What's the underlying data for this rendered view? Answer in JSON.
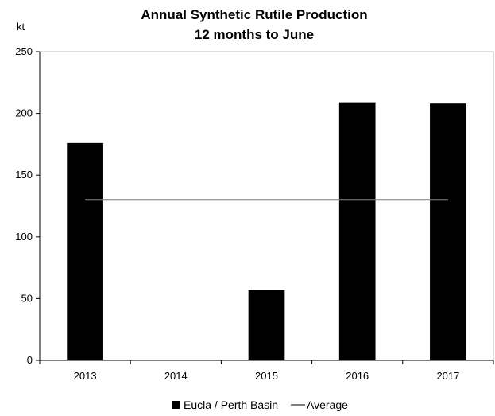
{
  "chart_data": {
    "type": "bar",
    "title": "Annual Synthetic Rutile Production",
    "subtitle": "12 months to June",
    "ylabel": "kt",
    "xlabel": "",
    "categories": [
      "2013",
      "2014",
      "2015",
      "2016",
      "2017"
    ],
    "series": [
      {
        "name": "Eucla / Perth Basin",
        "type": "bar",
        "color": "#000000",
        "values": [
          176,
          0,
          57,
          209,
          208
        ]
      },
      {
        "name": "Average",
        "type": "line",
        "color": "#7f7f7f",
        "values": [
          130,
          130,
          130,
          130,
          130
        ]
      }
    ],
    "ylim": [
      0,
      250
    ],
    "yticks": [
      0,
      50,
      100,
      150,
      200,
      250
    ],
    "grid": false,
    "legend": "bottom"
  }
}
